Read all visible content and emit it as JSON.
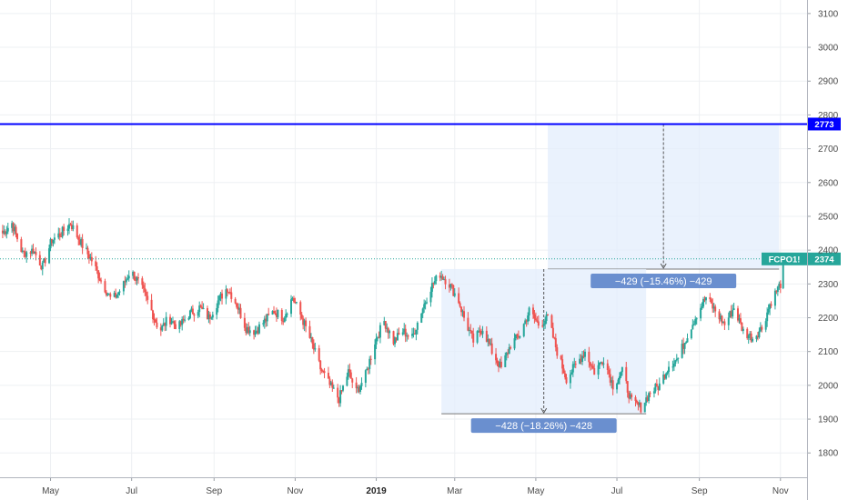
{
  "chart_data": {
    "type": "candlestick",
    "symbol": "FCPO1!",
    "last_price": 2374,
    "y_axis": {
      "ticks": [
        1800,
        1900,
        2000,
        2100,
        2200,
        2300,
        2400,
        2500,
        2600,
        2700,
        2800,
        2900,
        3000,
        3100
      ],
      "range": [
        1728,
        3140
      ],
      "position": "right"
    },
    "x_axis": {
      "labels": [
        {
          "text": "May",
          "date": "2018-05-01",
          "bold": false
        },
        {
          "text": "Jul",
          "date": "2018-07-01",
          "bold": false
        },
        {
          "text": "Sep",
          "date": "2018-09-01",
          "bold": false
        },
        {
          "text": "Nov",
          "date": "2018-11-01",
          "bold": false
        },
        {
          "text": "2019",
          "date": "2019-01-01",
          "bold": true
        },
        {
          "text": "Mar",
          "date": "2019-03-01",
          "bold": false
        },
        {
          "text": "May",
          "date": "2019-05-01",
          "bold": false
        },
        {
          "text": "Jul",
          "date": "2019-07-01",
          "bold": false
        },
        {
          "text": "Sep",
          "date": "2019-09-01",
          "bold": false
        },
        {
          "text": "Nov",
          "date": "2019-11-01",
          "bold": false
        }
      ],
      "range": [
        "2018-03-24",
        "2019-11-21"
      ]
    },
    "grid": true,
    "colors": {
      "up": "#26a69a",
      "down": "#ef5350",
      "horizontal_line": "#0000ff",
      "price_tag": "#26a69a",
      "measure_box": "#6a8fcf",
      "measure_fill": "#e3eefc"
    },
    "horizontal_line": {
      "value": 2773,
      "label": "2773"
    },
    "price_line": {
      "value": 2374,
      "label": "2374"
    },
    "close_path": [
      [
        "2018-03-26",
        2450
      ],
      [
        "2018-04-02",
        2480
      ],
      [
        "2018-04-10",
        2390
      ],
      [
        "2018-04-18",
        2400
      ],
      [
        "2018-04-25",
        2350
      ],
      [
        "2018-05-02",
        2430
      ],
      [
        "2018-05-09",
        2450
      ],
      [
        "2018-05-16",
        2480
      ],
      [
        "2018-05-24",
        2420
      ],
      [
        "2018-06-01",
        2370
      ],
      [
        "2018-06-08",
        2310
      ],
      [
        "2018-06-16",
        2250
      ],
      [
        "2018-06-24",
        2290
      ],
      [
        "2018-06-30",
        2340
      ],
      [
        "2018-07-07",
        2300
      ],
      [
        "2018-07-14",
        2240
      ],
      [
        "2018-07-22",
        2160
      ],
      [
        "2018-07-29",
        2200
      ],
      [
        "2018-08-05",
        2170
      ],
      [
        "2018-08-13",
        2210
      ],
      [
        "2018-08-21",
        2230
      ],
      [
        "2018-08-28",
        2200
      ],
      [
        "2018-09-04",
        2250
      ],
      [
        "2018-09-11",
        2290
      ],
      [
        "2018-09-18",
        2240
      ],
      [
        "2018-09-25",
        2170
      ],
      [
        "2018-10-02",
        2160
      ],
      [
        "2018-10-09",
        2190
      ],
      [
        "2018-10-16",
        2220
      ],
      [
        "2018-10-23",
        2200
      ],
      [
        "2018-10-30",
        2260
      ],
      [
        "2018-11-06",
        2200
      ],
      [
        "2018-11-13",
        2130
      ],
      [
        "2018-11-20",
        2050
      ],
      [
        "2018-11-27",
        2000
      ],
      [
        "2018-12-04",
        1960
      ],
      [
        "2018-12-11",
        2040
      ],
      [
        "2018-12-17",
        1980
      ],
      [
        "2018-12-24",
        2030
      ],
      [
        "2018-12-31",
        2130
      ],
      [
        "2019-01-07",
        2190
      ],
      [
        "2019-01-14",
        2130
      ],
      [
        "2019-01-21",
        2160
      ],
      [
        "2019-01-28",
        2140
      ],
      [
        "2019-02-04",
        2220
      ],
      [
        "2019-02-11",
        2290
      ],
      [
        "2019-02-18",
        2330
      ],
      [
        "2019-02-25",
        2300
      ],
      [
        "2019-03-04",
        2250
      ],
      [
        "2019-03-08",
        2200
      ],
      [
        "2019-03-15",
        2130
      ],
      [
        "2019-03-22",
        2170
      ],
      [
        "2019-03-29",
        2100
      ],
      [
        "2019-04-05",
        2050
      ],
      [
        "2019-04-12",
        2120
      ],
      [
        "2019-04-19",
        2150
      ],
      [
        "2019-04-26",
        2220
      ],
      [
        "2019-05-03",
        2180
      ],
      [
        "2019-05-10",
        2200
      ],
      [
        "2019-05-17",
        2100
      ],
      [
        "2019-05-24",
        2020
      ],
      [
        "2019-05-31",
        2060
      ],
      [
        "2019-06-07",
        2100
      ],
      [
        "2019-06-14",
        2040
      ],
      [
        "2019-06-21",
        2080
      ],
      [
        "2019-06-28",
        2000
      ],
      [
        "2019-07-05",
        2040
      ],
      [
        "2019-07-12",
        1950
      ],
      [
        "2019-07-19",
        1935
      ],
      [
        "2019-07-26",
        1980
      ],
      [
        "2019-08-02",
        2000
      ],
      [
        "2019-08-09",
        2060
      ],
      [
        "2019-08-16",
        2080
      ],
      [
        "2019-08-23",
        2150
      ],
      [
        "2019-08-30",
        2210
      ],
      [
        "2019-09-06",
        2260
      ],
      [
        "2019-09-13",
        2220
      ],
      [
        "2019-09-20",
        2180
      ],
      [
        "2019-09-27",
        2230
      ],
      [
        "2019-10-04",
        2160
      ],
      [
        "2019-10-11",
        2140
      ],
      [
        "2019-10-18",
        2170
      ],
      [
        "2019-10-25",
        2250
      ],
      [
        "2019-11-01",
        2300
      ],
      [
        "2019-11-03",
        2374
      ]
    ],
    "measures": [
      {
        "label": "−429 (−15.46%) −429",
        "from_date": "2019-05-10",
        "to_date": "2019-10-31",
        "top_value": 2773,
        "bottom_value": 2344,
        "arrow": "down"
      },
      {
        "label": "−428 (−18.26%) −428",
        "from_date": "2019-02-19",
        "to_date": "2019-07-23",
        "top_value": 2344,
        "bottom_value": 1916,
        "arrow": "down"
      }
    ]
  }
}
